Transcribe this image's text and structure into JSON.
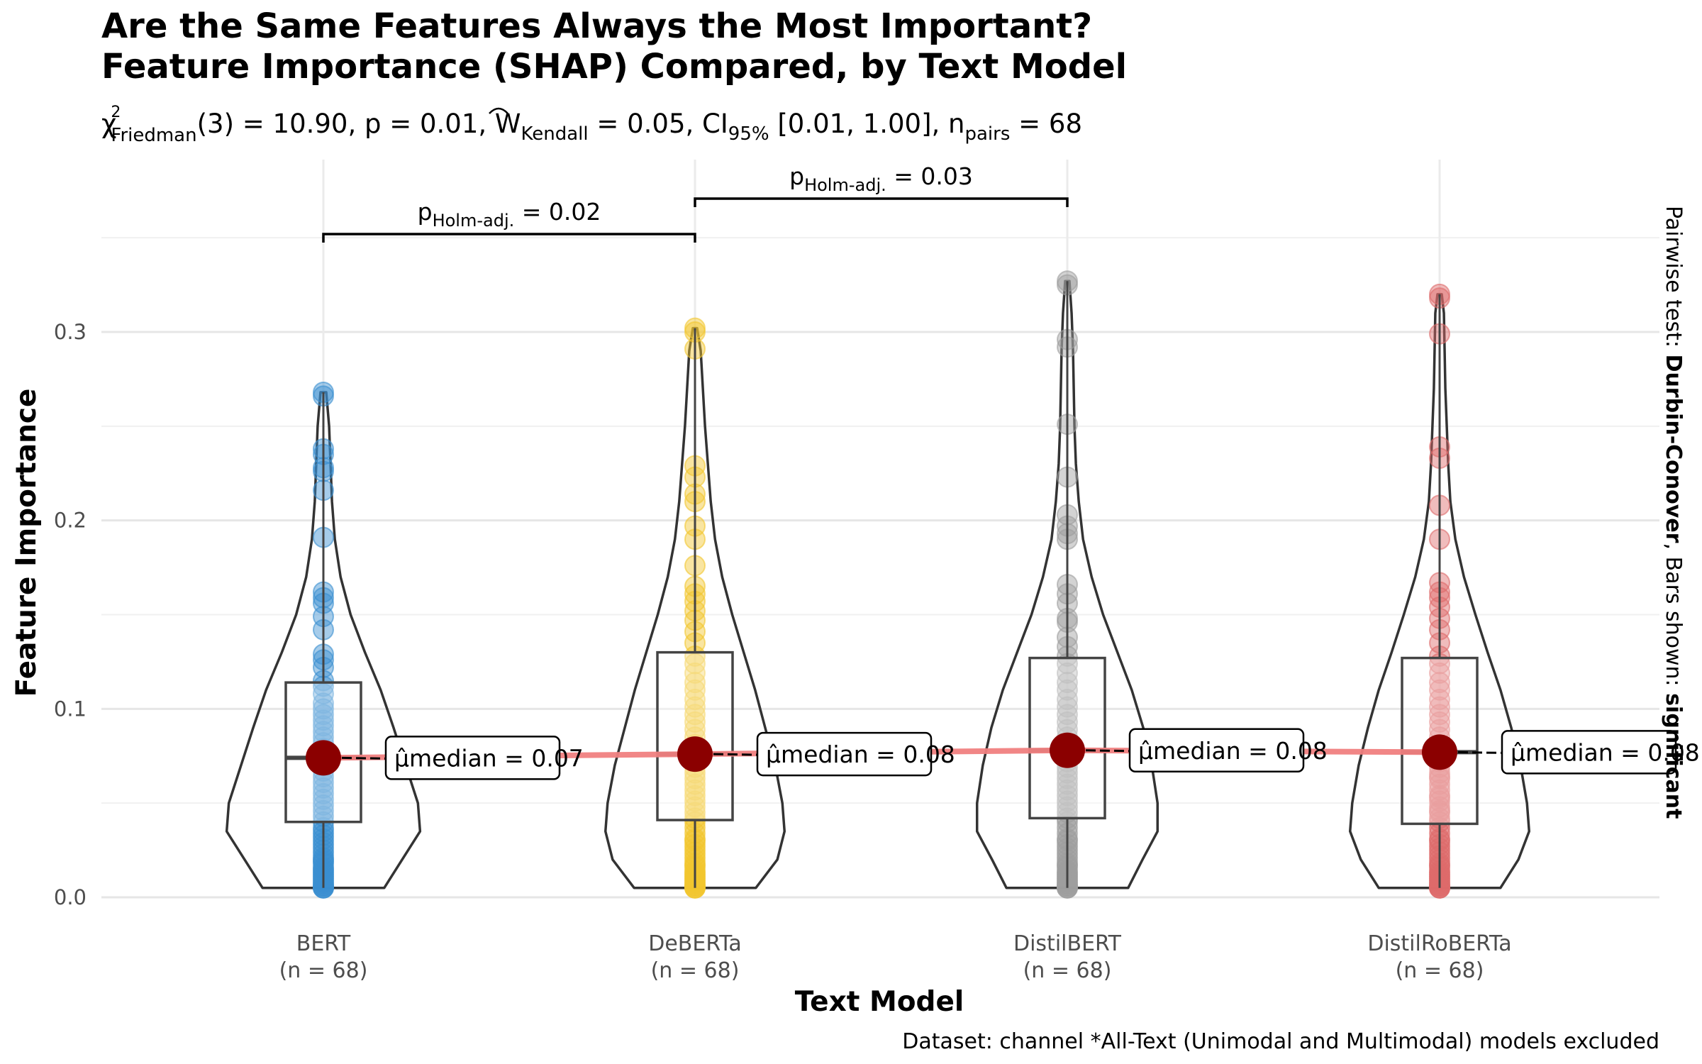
{
  "chart_data": {
    "type": "violin",
    "title_line1": "Are the Same Features Always the Most Important?",
    "title_line2": "Feature Importance (SHAP) Compared, by Text Model",
    "subtitle": "χ²Friedman(3) = 10.90, p = 0.01, Ŵ Kendall = 0.05, CI95% [0.01, 1.00], npairs = 68",
    "xlabel": "Text Model",
    "ylabel": "Feature Importance",
    "ylim": [
      0,
      0.36
    ],
    "yticks": [
      0.0,
      0.1,
      0.2,
      0.3
    ],
    "ytick_labels": [
      "0.0",
      "0.1",
      "0.2",
      "0.3"
    ],
    "categories": [
      "BERT",
      "DeBERTa",
      "DistilBERT",
      "DistilRoBERTa"
    ],
    "n_labels": [
      "(n = 68)",
      "(n = 68)",
      "(n = 68)",
      "(n = 68)"
    ],
    "colors": [
      "#3a8fd1",
      "#f2c62e",
      "#9e9e9e",
      "#de6b6b"
    ],
    "median_line_color": "#f08080",
    "median_point_color": "#8b0000",
    "medians": [
      0.07,
      0.08,
      0.08,
      0.08
    ],
    "median_labels": [
      "μ̂median = 0.07",
      "μ̂median = 0.08",
      "μ̂median = 0.08",
      "μ̂median = 0.08"
    ],
    "boxes": [
      {
        "q1": 0.04,
        "median": 0.074,
        "q3": 0.114,
        "min": 0.005,
        "max": 0.268
      },
      {
        "q1": 0.041,
        "median": 0.076,
        "q3": 0.13,
        "min": 0.005,
        "max": 0.302
      },
      {
        "q1": 0.042,
        "median": 0.078,
        "q3": 0.127,
        "min": 0.005,
        "max": 0.327
      },
      {
        "q1": 0.039,
        "median": 0.077,
        "q3": 0.127,
        "min": 0.005,
        "max": 0.32
      }
    ],
    "points": [
      [
        0.268,
        0.266,
        0.238,
        0.235,
        0.228,
        0.226,
        0.216,
        0.191,
        0.162,
        0.159,
        0.156,
        0.149,
        0.142,
        0.129,
        0.126,
        0.122,
        0.115,
        0.112,
        0.108,
        0.103,
        0.1,
        0.097,
        0.094,
        0.091,
        0.088,
        0.085,
        0.082,
        0.079,
        0.076,
        0.073,
        0.07,
        0.067,
        0.064,
        0.061,
        0.058,
        0.055,
        0.052,
        0.049,
        0.046,
        0.043,
        0.04,
        0.037,
        0.035,
        0.033,
        0.031,
        0.029,
        0.027,
        0.025,
        0.023,
        0.021,
        0.019,
        0.018,
        0.016,
        0.015,
        0.013,
        0.012,
        0.011,
        0.01,
        0.009,
        0.008,
        0.007,
        0.006,
        0.006,
        0.005,
        0.005,
        0.005,
        0.014,
        0.02
      ],
      [
        0.302,
        0.3,
        0.291,
        0.229,
        0.223,
        0.214,
        0.21,
        0.197,
        0.19,
        0.176,
        0.165,
        0.161,
        0.157,
        0.152,
        0.147,
        0.141,
        0.135,
        0.128,
        0.124,
        0.119,
        0.114,
        0.11,
        0.105,
        0.101,
        0.097,
        0.093,
        0.089,
        0.085,
        0.081,
        0.078,
        0.075,
        0.072,
        0.069,
        0.066,
        0.063,
        0.06,
        0.057,
        0.054,
        0.051,
        0.048,
        0.045,
        0.042,
        0.04,
        0.037,
        0.034,
        0.031,
        0.028,
        0.026,
        0.024,
        0.022,
        0.02,
        0.018,
        0.016,
        0.014,
        0.013,
        0.011,
        0.01,
        0.009,
        0.008,
        0.007,
        0.006,
        0.006,
        0.005,
        0.005,
        0.005,
        0.012,
        0.017,
        0.03
      ],
      [
        0.327,
        0.325,
        0.296,
        0.292,
        0.251,
        0.223,
        0.203,
        0.197,
        0.193,
        0.19,
        0.166,
        0.161,
        0.156,
        0.148,
        0.146,
        0.138,
        0.133,
        0.128,
        0.124,
        0.119,
        0.114,
        0.11,
        0.105,
        0.101,
        0.097,
        0.093,
        0.089,
        0.085,
        0.081,
        0.078,
        0.075,
        0.072,
        0.069,
        0.066,
        0.063,
        0.06,
        0.057,
        0.054,
        0.051,
        0.048,
        0.045,
        0.042,
        0.04,
        0.037,
        0.034,
        0.031,
        0.028,
        0.026,
        0.024,
        0.022,
        0.02,
        0.018,
        0.016,
        0.014,
        0.013,
        0.011,
        0.01,
        0.009,
        0.008,
        0.007,
        0.006,
        0.006,
        0.005,
        0.005,
        0.005,
        0.012,
        0.017,
        0.03
      ],
      [
        0.32,
        0.318,
        0.299,
        0.239,
        0.233,
        0.208,
        0.19,
        0.167,
        0.162,
        0.159,
        0.154,
        0.148,
        0.142,
        0.135,
        0.128,
        0.124,
        0.119,
        0.114,
        0.11,
        0.105,
        0.101,
        0.097,
        0.093,
        0.089,
        0.085,
        0.081,
        0.078,
        0.075,
        0.072,
        0.069,
        0.066,
        0.063,
        0.06,
        0.057,
        0.054,
        0.051,
        0.048,
        0.045,
        0.042,
        0.04,
        0.037,
        0.034,
        0.031,
        0.028,
        0.026,
        0.024,
        0.022,
        0.02,
        0.018,
        0.016,
        0.014,
        0.013,
        0.011,
        0.01,
        0.009,
        0.008,
        0.007,
        0.006,
        0.006,
        0.005,
        0.005,
        0.005,
        0.012,
        0.017,
        0.03,
        0.046,
        0.053,
        0.064
      ]
    ],
    "violin_shapes": [
      [
        [
          0.005,
          0.085
        ],
        [
          0.02,
          0.11
        ],
        [
          0.035,
          0.135
        ],
        [
          0.05,
          0.132
        ],
        [
          0.07,
          0.115
        ],
        [
          0.09,
          0.098
        ],
        [
          0.11,
          0.08
        ],
        [
          0.13,
          0.058
        ],
        [
          0.15,
          0.038
        ],
        [
          0.17,
          0.024
        ],
        [
          0.19,
          0.016
        ],
        [
          0.21,
          0.012
        ],
        [
          0.23,
          0.01
        ],
        [
          0.25,
          0.008
        ],
        [
          0.268,
          0.004
        ]
      ],
      [
        [
          0.005,
          0.085
        ],
        [
          0.02,
          0.115
        ],
        [
          0.035,
          0.125
        ],
        [
          0.05,
          0.122
        ],
        [
          0.07,
          0.112
        ],
        [
          0.09,
          0.098
        ],
        [
          0.11,
          0.084
        ],
        [
          0.13,
          0.068
        ],
        [
          0.15,
          0.052
        ],
        [
          0.17,
          0.038
        ],
        [
          0.19,
          0.028
        ],
        [
          0.21,
          0.022
        ],
        [
          0.23,
          0.018
        ],
        [
          0.25,
          0.014
        ],
        [
          0.27,
          0.011
        ],
        [
          0.29,
          0.008
        ],
        [
          0.302,
          0.003
        ]
      ],
      [
        [
          0.005,
          0.085
        ],
        [
          0.02,
          0.105
        ],
        [
          0.035,
          0.126
        ],
        [
          0.05,
          0.126
        ],
        [
          0.07,
          0.118
        ],
        [
          0.09,
          0.106
        ],
        [
          0.11,
          0.09
        ],
        [
          0.13,
          0.07
        ],
        [
          0.15,
          0.05
        ],
        [
          0.17,
          0.034
        ],
        [
          0.19,
          0.022
        ],
        [
          0.21,
          0.016
        ],
        [
          0.23,
          0.012
        ],
        [
          0.25,
          0.01
        ],
        [
          0.27,
          0.009
        ],
        [
          0.29,
          0.008
        ],
        [
          0.31,
          0.006
        ],
        [
          0.327,
          0.003
        ]
      ],
      [
        [
          0.005,
          0.085
        ],
        [
          0.02,
          0.11
        ],
        [
          0.035,
          0.125
        ],
        [
          0.05,
          0.122
        ],
        [
          0.07,
          0.113
        ],
        [
          0.09,
          0.1
        ],
        [
          0.11,
          0.085
        ],
        [
          0.13,
          0.067
        ],
        [
          0.15,
          0.05
        ],
        [
          0.17,
          0.034
        ],
        [
          0.19,
          0.022
        ],
        [
          0.21,
          0.015
        ],
        [
          0.23,
          0.012
        ],
        [
          0.25,
          0.01
        ],
        [
          0.27,
          0.008
        ],
        [
          0.29,
          0.007
        ],
        [
          0.31,
          0.006
        ],
        [
          0.32,
          0.003
        ]
      ]
    ],
    "pairwise": [
      {
        "from": 0,
        "to": 1,
        "label_prefix": "p",
        "label_sub": "Holm-adj.",
        "label_value": " = 0.02"
      },
      {
        "from": 1,
        "to": 2,
        "label_prefix": "p",
        "label_sub": "Holm-adj.",
        "label_value": " = 0.03"
      }
    ],
    "side_label_parts": [
      "Pairwise test: ",
      "Durbin-Conover",
      ", Bars shown: ",
      "significant"
    ],
    "caption": "Dataset:  channel *All-Text (Unimodal and Multimodal) models excluded",
    "grid": true
  }
}
